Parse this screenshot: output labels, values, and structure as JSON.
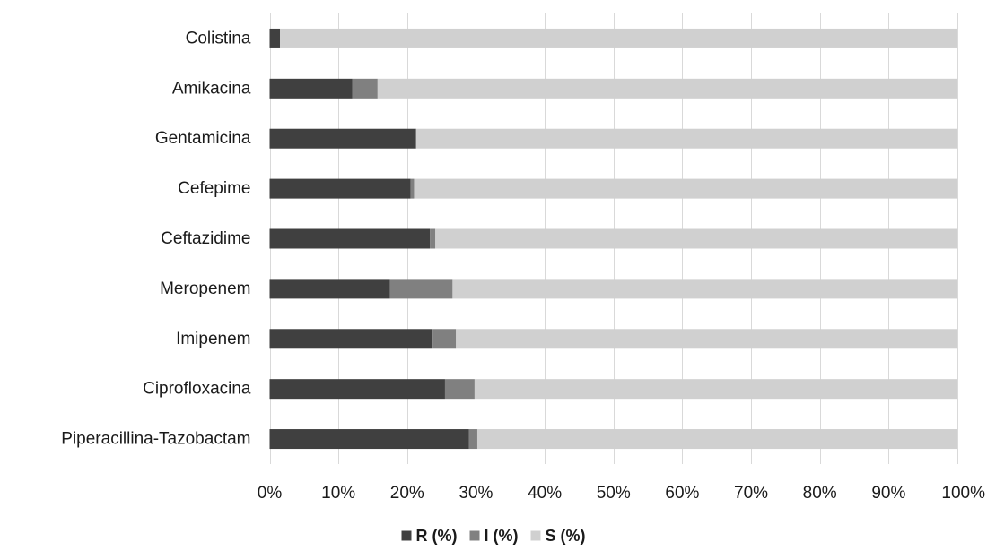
{
  "chart_data": {
    "type": "bar",
    "orientation": "horizontal",
    "stacked": "percent",
    "categories": [
      "Colistina",
      "Amikacina",
      "Gentamicina",
      "Cefepime",
      "Ceftazidime",
      "Meropenem",
      "Imipenem",
      "Ciprofloxacina",
      "Piperacillina-Tazobactam"
    ],
    "series": [
      {
        "name": "R (%)",
        "values": [
          1.5,
          12,
          21.3,
          20.5,
          23.3,
          17.5,
          23.7,
          25.5,
          29
        ],
        "color": "#404040"
      },
      {
        "name": "I (%)",
        "values": [
          0,
          3.7,
          0,
          0.5,
          0.8,
          9.1,
          3.4,
          4.3,
          1.2
        ],
        "color": "#808080"
      },
      {
        "name": "S (%)",
        "values": [
          98.5,
          84.3,
          78.7,
          79,
          75.9,
          73.4,
          72.9,
          70.2,
          69.8
        ],
        "color": "#d0d0d0"
      }
    ],
    "x_tick_labels": [
      "0%",
      "10%",
      "20%",
      "30%",
      "40%",
      "50%",
      "60%",
      "70%",
      "80%",
      "90%",
      "100%"
    ],
    "xlim": [
      0,
      100
    ],
    "grid": "vertical",
    "legend_position": "bottom",
    "title": "",
    "xlabel": "",
    "ylabel": ""
  }
}
